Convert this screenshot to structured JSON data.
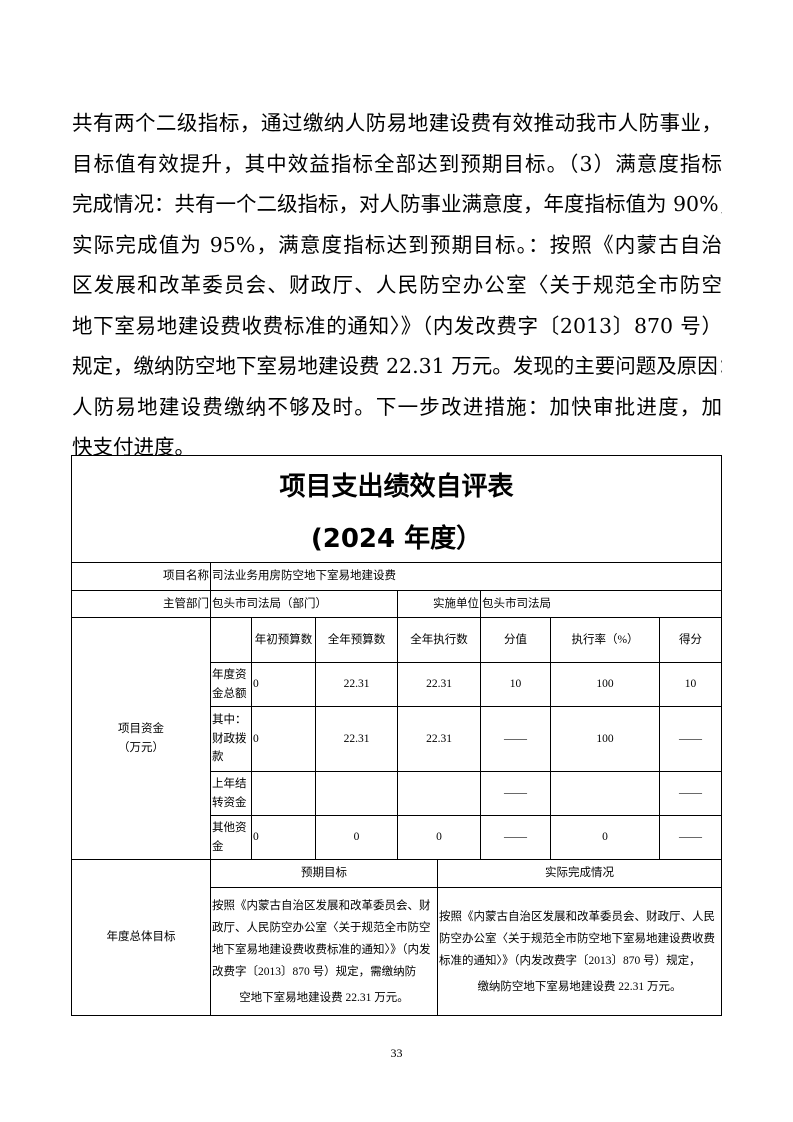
{
  "paragraph_lines": [
    "共有两个二级指标，通过缴纳人防易地建设费有效推动我市人防事业，",
    "目标值有效提升，其中效益指标全部达到预期目标。（3）满意度指标",
    "完成情况：共有一个二级指标，对人防事业满意度，年度指标值为 90%，",
    "实际完成值为 95%，满意度指标达到预期目标。：按照《内蒙古自治",
    "区发展和改革委员会、财政厅、人民防空办公室〈关于规范全市防空",
    "地下室易地建设费收费标准的通知〉》（内发改费字〔2013〕870 号）",
    "规定，缴纳防空地下室易地建设费 22.31 万元。发现的主要问题及原因：",
    "人防易地建设费缴纳不够及时。下一步改进措施：加快审批进度，加",
    "快支付进度。"
  ],
  "table": {
    "title": "项目支出绩效自评表",
    "subtitle": "(2024 年度）",
    "project_name_label": "项目名称",
    "project_name": "司法业务用房防空地下室易地建设费",
    "dept_label": "主管部门",
    "dept": "包头市司法局（部门）",
    "impl_label": "实施单位",
    "impl": "包头市司法局",
    "funds_label": "项目资金（万元）",
    "funds_label_line1": "项目资金",
    "funds_label_line2": "（万元）",
    "headers": [
      "",
      "年初预算数",
      "全年预算数",
      "全年执行数",
      "分值",
      "执行率（%）",
      "得分"
    ],
    "rows": [
      {
        "label": "年度资金总额",
        "cells": [
          "0",
          "22.31",
          "22.31",
          "10",
          "100",
          "10"
        ]
      },
      {
        "label": "其中：财政拨款",
        "cells": [
          "0",
          "22.31",
          "22.31",
          "——",
          "100",
          "——"
        ]
      },
      {
        "label": "上年结转资金",
        "cells": [
          "",
          "",
          "",
          "——",
          "",
          "——"
        ]
      },
      {
        "label": "其他资金",
        "cells": [
          "0",
          "0",
          "0",
          "——",
          "0",
          "——"
        ]
      }
    ],
    "goal_label": "年度总体目标",
    "expected_header": "预期目标",
    "actual_header": "实际完成情况",
    "expected_text": "按照《内蒙古自治区发展和改革委员会、财政厅、人民防空办公室〈关于规范全市防空地下室易地建设费收费标准的通知〉》（内发改费字〔2013〕870 号）规定，需缴纳防",
    "expected_text_end": "空地下室易地建设费 22.31 万元。",
    "actual_text": "按照《内蒙古自治区发展和改革委员会、财政厅、人民防空办公室〈关于规范全市防空地下室易地建设费收费标准的通知〉》（内发改费字〔2013〕870 号）规定，",
    "actual_text_end": "缴纳防空地下室易地建设费 22.31 万元。"
  },
  "page_number": "33"
}
